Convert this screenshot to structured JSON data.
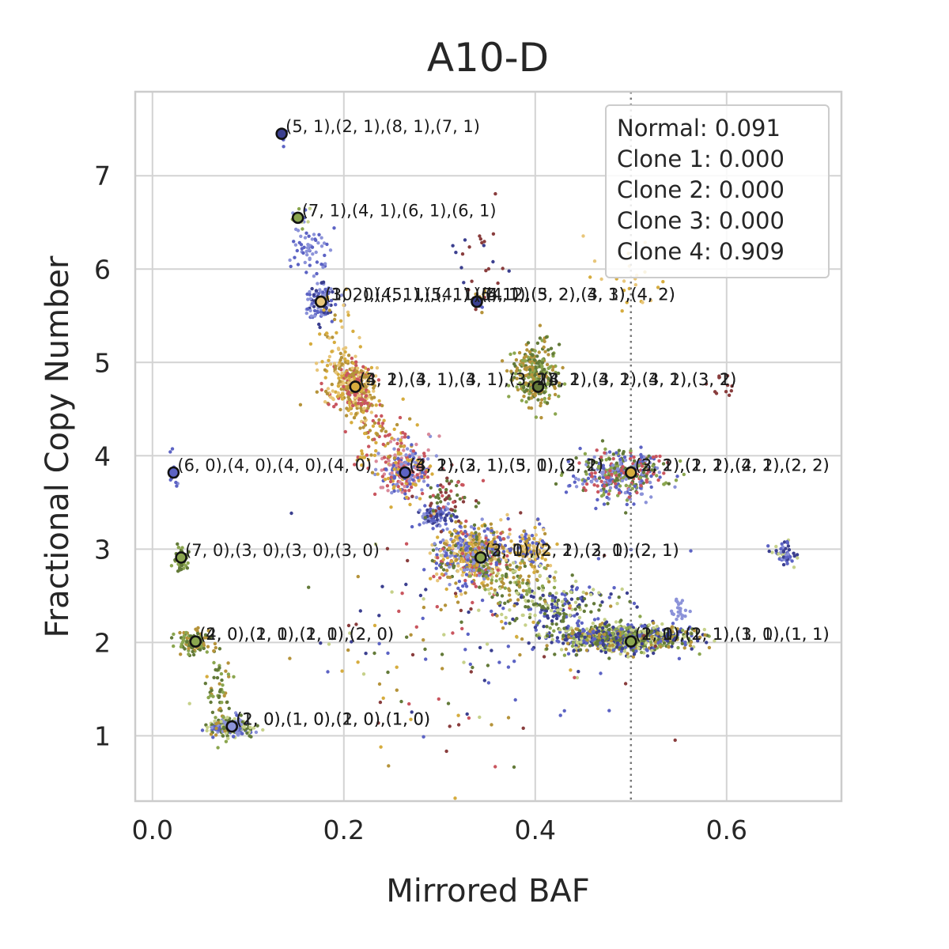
{
  "chart_data": {
    "type": "scatter",
    "title": "A10-D",
    "xlabel": "Mirrored BAF",
    "ylabel": "Fractional Copy Number",
    "xlim": [
      -0.018,
      0.72
    ],
    "ylim": [
      0.3,
      7.9
    ],
    "x_ticks": [
      0.0,
      0.2,
      0.4,
      0.6
    ],
    "x_tick_labels": [
      "0.0",
      "0.2",
      "0.4",
      "0.6"
    ],
    "y_ticks": [
      1,
      2,
      3,
      4,
      5,
      6,
      7
    ],
    "y_tick_labels": [
      "1",
      "2",
      "3",
      "4",
      "5",
      "6",
      "7"
    ],
    "grid": true,
    "vline": {
      "x": 0.5,
      "style": "dotted",
      "color": "#777777"
    },
    "legend": {
      "placement": "top-right",
      "entries": [
        "Normal: 0.091",
        "Clone 1: 0.000",
        "Clone 2: 0.000",
        "Clone 3: 0.000",
        "Clone 4: 0.909"
      ]
    },
    "palette": [
      "#3b3f8f",
      "#5c63c4",
      "#8c93d9",
      "#637a39",
      "#8ba64f",
      "#c6d18a",
      "#b5933a",
      "#d6ac3e",
      "#e8c67a",
      "#893d3d",
      "#c9565f",
      "#d98a9a"
    ],
    "clusters": [
      {
        "x": 0.082,
        "y": 1.1,
        "sx": 0.012,
        "sy": 0.05,
        "n": 200,
        "colors": [
          2,
          1,
          3,
          5
        ]
      },
      {
        "x": 0.045,
        "y": 2.0,
        "sx": 0.008,
        "sy": 0.06,
        "n": 110,
        "colors": [
          3,
          4,
          6
        ]
      },
      {
        "x": 0.03,
        "y": 2.88,
        "sx": 0.004,
        "sy": 0.05,
        "n": 55,
        "colors": [
          3,
          4
        ]
      },
      {
        "x": 0.022,
        "y": 3.82,
        "sx": 0.003,
        "sy": 0.12,
        "n": 14,
        "colors": [
          1,
          2
        ]
      },
      {
        "x": 0.175,
        "y": 5.65,
        "sx": 0.008,
        "sy": 0.1,
        "n": 110,
        "colors": [
          1,
          0,
          2
        ]
      },
      {
        "x": 0.165,
        "y": 6.2,
        "sx": 0.008,
        "sy": 0.15,
        "n": 60,
        "colors": [
          2,
          1
        ]
      },
      {
        "x": 0.152,
        "y": 6.55,
        "sx": 0.005,
        "sy": 0.05,
        "n": 20,
        "colors": [
          4,
          5,
          2
        ]
      },
      {
        "x": 0.135,
        "y": 7.45,
        "sx": 0.003,
        "sy": 0.05,
        "n": 10,
        "colors": [
          0,
          1
        ]
      },
      {
        "x": 0.21,
        "y": 4.75,
        "sx": 0.012,
        "sy": 0.15,
        "n": 320,
        "colors": [
          7,
          6,
          8,
          10
        ]
      },
      {
        "x": 0.265,
        "y": 3.85,
        "sx": 0.014,
        "sy": 0.15,
        "n": 260,
        "colors": [
          10,
          11,
          1,
          2,
          7
        ]
      },
      {
        "x": 0.295,
        "y": 3.35,
        "sx": 0.008,
        "sy": 0.06,
        "n": 80,
        "colors": [
          1,
          2,
          0
        ]
      },
      {
        "x": 0.335,
        "y": 2.95,
        "sx": 0.02,
        "sy": 0.15,
        "n": 600,
        "colors": [
          7,
          8,
          6,
          2,
          1,
          10,
          3
        ]
      },
      {
        "x": 0.395,
        "y": 3.0,
        "sx": 0.01,
        "sy": 0.1,
        "n": 120,
        "colors": [
          6,
          7,
          8,
          1
        ]
      },
      {
        "x": 0.4,
        "y": 4.85,
        "sx": 0.012,
        "sy": 0.18,
        "n": 260,
        "colors": [
          3,
          4,
          6
        ]
      },
      {
        "x": 0.49,
        "y": 3.8,
        "sx": 0.022,
        "sy": 0.12,
        "n": 380,
        "colors": [
          1,
          10,
          3,
          4,
          2
        ]
      },
      {
        "x": 0.49,
        "y": 2.05,
        "sx": 0.035,
        "sy": 0.07,
        "n": 900,
        "colors": [
          3,
          4,
          0,
          1,
          5,
          6
        ]
      },
      {
        "x": 0.425,
        "y": 2.4,
        "sx": 0.03,
        "sy": 0.15,
        "n": 220,
        "colors": [
          0,
          3,
          1,
          5
        ]
      },
      {
        "x": 0.55,
        "y": 2.35,
        "sx": 0.005,
        "sy": 0.06,
        "n": 25,
        "colors": [
          2
        ]
      },
      {
        "x": 0.66,
        "y": 2.95,
        "sx": 0.006,
        "sy": 0.06,
        "n": 55,
        "colors": [
          5,
          2,
          1,
          0
        ]
      },
      {
        "x": 0.34,
        "y": 5.68,
        "sx": 0.005,
        "sy": 0.05,
        "n": 18,
        "colors": [
          6,
          9,
          1
        ]
      },
      {
        "x": 0.5,
        "y": 5.95,
        "sx": 0.02,
        "sy": 0.2,
        "n": 22,
        "colors": [
          8,
          7
        ]
      },
      {
        "x": 0.34,
        "y": 6.2,
        "sx": 0.015,
        "sy": 0.25,
        "n": 22,
        "colors": [
          9,
          0
        ]
      },
      {
        "x": 0.595,
        "y": 4.8,
        "sx": 0.01,
        "sy": 0.15,
        "n": 12,
        "colors": [
          9
        ]
      },
      {
        "x": 0.33,
        "y": 2.0,
        "sx": 0.1,
        "sy": 0.7,
        "n": 160,
        "colors": [
          0,
          3,
          5,
          6,
          7,
          9,
          10,
          1
        ]
      },
      {
        "x": 0.07,
        "y": 1.55,
        "sx": 0.006,
        "sy": 0.28,
        "n": 60,
        "colors": [
          3,
          6,
          4
        ]
      },
      {
        "x": 0.19,
        "y": 5.1,
        "sx": 0.01,
        "sy": 0.25,
        "n": 60,
        "colors": [
          7,
          8,
          6
        ]
      },
      {
        "x": 0.235,
        "y": 4.25,
        "sx": 0.012,
        "sy": 0.2,
        "n": 80,
        "colors": [
          10,
          7,
          6
        ]
      },
      {
        "x": 0.31,
        "y": 3.55,
        "sx": 0.015,
        "sy": 0.12,
        "n": 60,
        "colors": [
          10,
          9,
          3
        ]
      },
      {
        "x": 0.375,
        "y": 2.65,
        "sx": 0.02,
        "sy": 0.12,
        "n": 110,
        "colors": [
          5,
          6,
          4,
          3
        ]
      }
    ],
    "centroids": [
      {
        "x": 0.135,
        "y": 7.45,
        "color": "#3b3f8f",
        "label": "(5, 1),(2, 1),(8, 1),(7, 1)"
      },
      {
        "x": 0.152,
        "y": 6.55,
        "color": "#8ba64f",
        "label": "(7, 1),(4, 1),(6, 1),(6, 1)"
      },
      {
        "x": 0.176,
        "y": 5.65,
        "color": "#e8c67a",
        "label": "(3, 2),(4, 1),(5, 1),(5, 1)"
      },
      {
        "x": 0.176,
        "y": 5.65,
        "color": "#e8c67a",
        "label": "(10, 0),(5, 1),(4, 1),(4, 2)"
      },
      {
        "x": 0.339,
        "y": 5.65,
        "color": "#3b3f8f",
        "label": "(5, 1),(5, 2),(3, 3),(4, 2)"
      },
      {
        "x": 0.339,
        "y": 5.65,
        "color": "#3b3f8f",
        "label": "(4, 1),(3, 2),(4, 1),(4, 2)"
      },
      {
        "x": 0.212,
        "y": 4.74,
        "color": "#d6ac3e",
        "label": "(4, 1),(3, 1),(3, 1),(3, 2)"
      },
      {
        "x": 0.212,
        "y": 4.74,
        "color": "#d6ac3e",
        "label": "(3, 2),(4, 1),(4, 1),(3, 1)"
      },
      {
        "x": 0.403,
        "y": 4.74,
        "color": "#637a39",
        "label": "(4, 1),(3, 2),(3, 2),(3, 2)"
      },
      {
        "x": 0.403,
        "y": 4.74,
        "color": "#637a39",
        "label": "(3, 2),(4, 1),(4, 1),(3, 1)"
      },
      {
        "x": 0.022,
        "y": 3.82,
        "color": "#5c63c4",
        "label": "(6, 0),(4, 0),(4, 0),(4, 0)"
      },
      {
        "x": 0.264,
        "y": 3.82,
        "color": "#5c63c4",
        "label": "(4, 1),(3, 1),(3, 1),(3, 1)"
      },
      {
        "x": 0.264,
        "y": 3.82,
        "color": "#5c63c4",
        "label": "(3, 2),(2, 1),(5, 0),(2, 2)"
      },
      {
        "x": 0.5,
        "y": 3.82,
        "color": "#d6ac3e",
        "label": "(2, 2),(2, 2),(2, 2),(2, 2)"
      },
      {
        "x": 0.5,
        "y": 3.82,
        "color": "#d6ac3e",
        "label": "(3, 1),(1, 1),(4, 1),(2, 2)"
      },
      {
        "x": 0.03,
        "y": 2.91,
        "color": "#8ba64f",
        "label": "(7, 0),(3, 0),(3, 0),(3, 0)"
      },
      {
        "x": 0.343,
        "y": 2.91,
        "color": "#8ba64f",
        "label": "(2, 1),(2, 1),(2, 1),(2, 1)"
      },
      {
        "x": 0.343,
        "y": 2.91,
        "color": "#8ba64f",
        "label": "(3, 0),(2, 2),(3, 0),(2, 1)"
      },
      {
        "x": 0.045,
        "y": 2.01,
        "color": "#8ba64f",
        "label": "(2, 0),(2, 0),(2, 0),(2, 0)"
      },
      {
        "x": 0.045,
        "y": 2.01,
        "color": "#8ba64f",
        "label": "(4, 0),(1, 1),(1, 1),(2, 0)"
      },
      {
        "x": 0.5,
        "y": 2.01,
        "color": "#8ba64f",
        "label": "(1, 1),(1, 1),(1, 1),(1, 1)"
      },
      {
        "x": 0.5,
        "y": 2.01,
        "color": "#8ba64f",
        "label": "(2, 0),(2, 1),(3, 0),(1, 1)"
      },
      {
        "x": 0.083,
        "y": 1.1,
        "color": "#8c93d9",
        "label": "(1, 0),(1, 0),(1, 0),(1, 0)"
      },
      {
        "x": 0.083,
        "y": 1.1,
        "color": "#8c93d9",
        "label": "(2, 0),(1, 0),(2, 0),(1, 0)"
      }
    ]
  }
}
